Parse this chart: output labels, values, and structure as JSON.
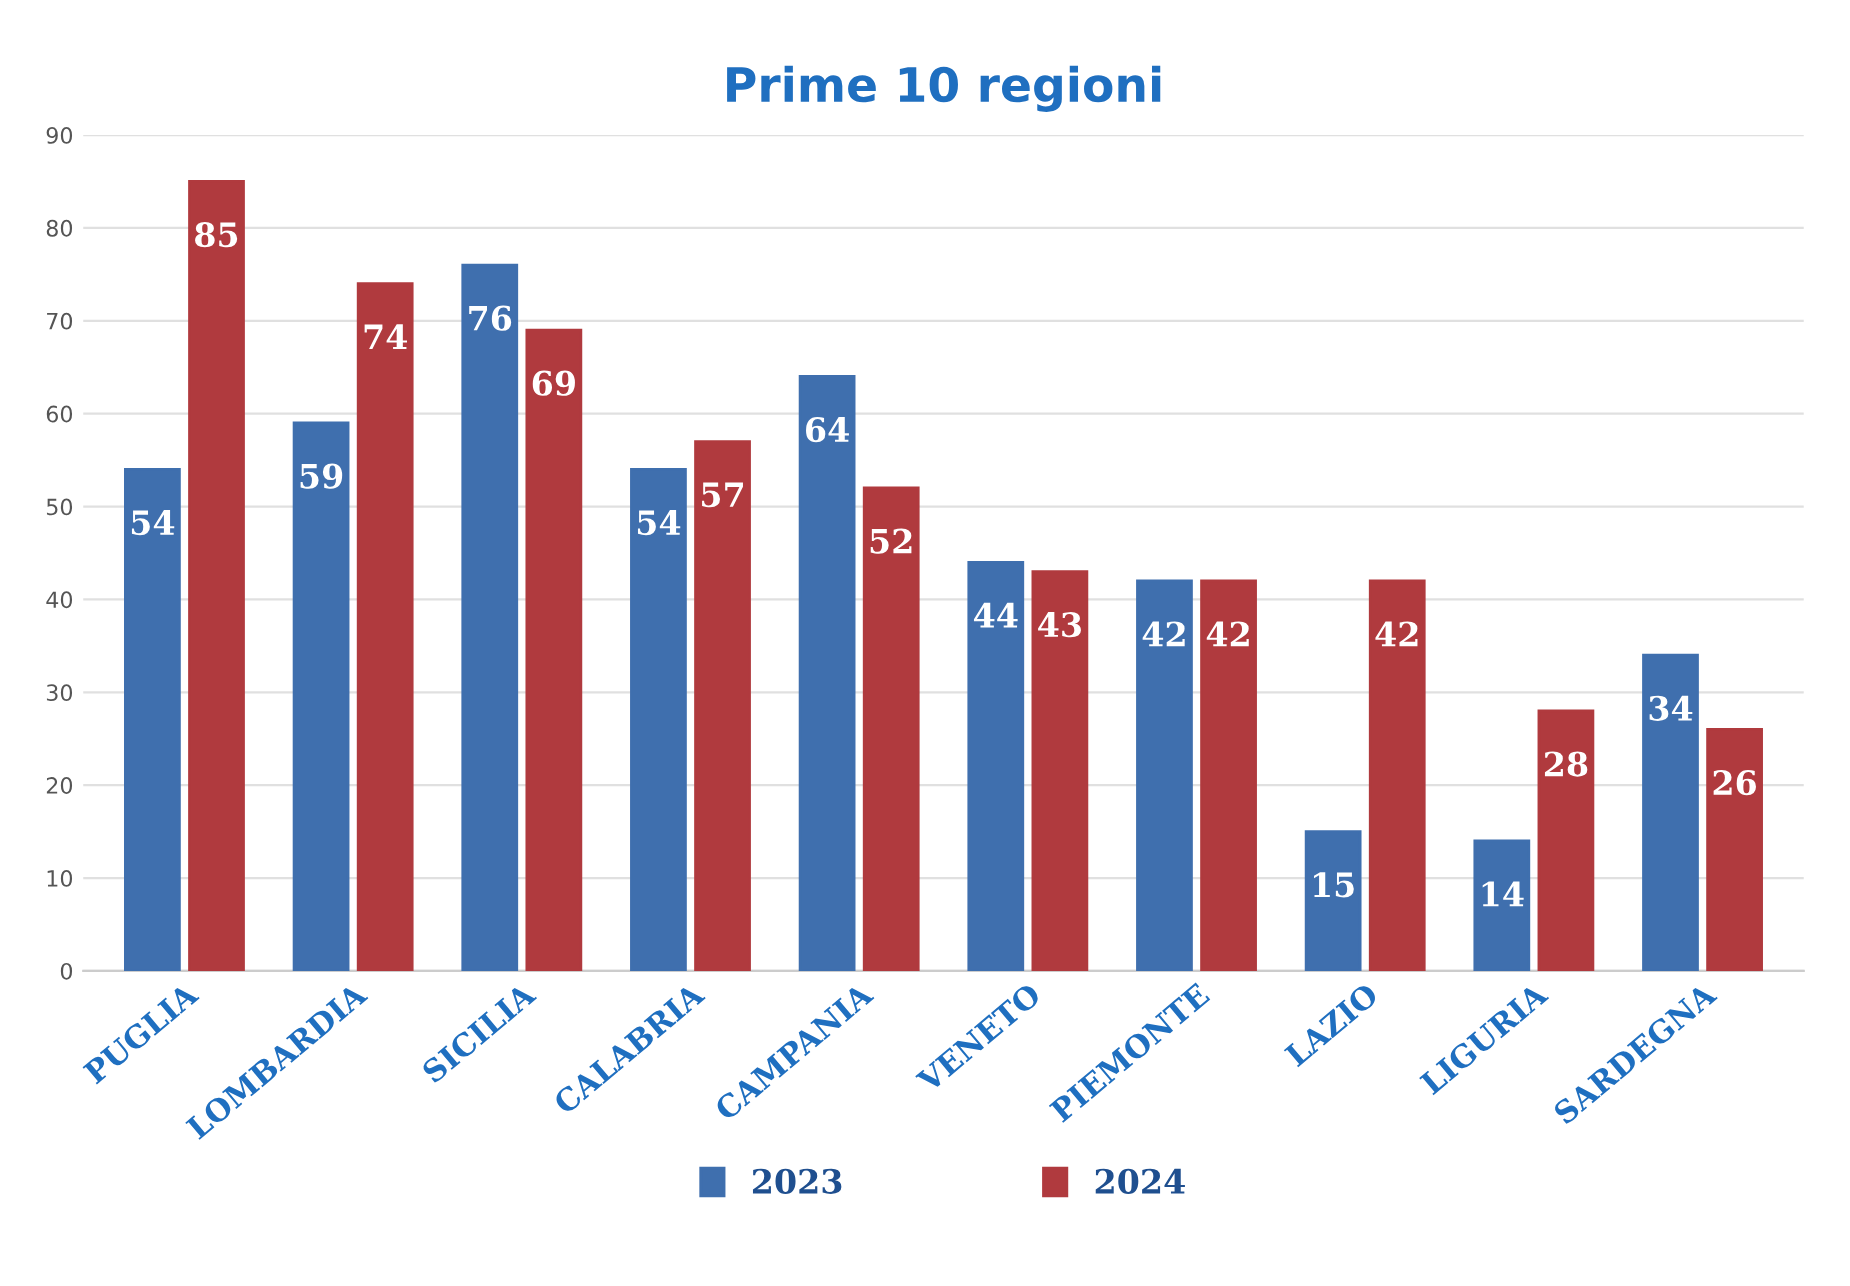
{
  "chart_data": {
    "type": "bar",
    "title": "Prime 10 regioni",
    "categories": [
      "PUGLIA",
      "LOMBARDIA",
      "SICILIA",
      "CALABRIA",
      "CAMPANIA",
      "VENETO",
      "PIEMONTE",
      "LAZIO",
      "LIGURIA",
      "SARDEGNA"
    ],
    "series": [
      {
        "name": "2023",
        "color": "#3f6fae",
        "values": [
          54,
          59,
          76,
          54,
          64,
          44,
          42,
          15,
          14,
          34
        ]
      },
      {
        "name": "2024",
        "color": "#b03a3e",
        "values": [
          85,
          74,
          69,
          57,
          52,
          43,
          42,
          42,
          28,
          26
        ]
      }
    ],
    "ylim": [
      0,
      90
    ],
    "yticks": [
      0,
      10,
      20,
      30,
      40,
      50,
      60,
      70,
      80,
      90
    ],
    "grid": "y",
    "legend": "bottom",
    "data_labels": true
  }
}
